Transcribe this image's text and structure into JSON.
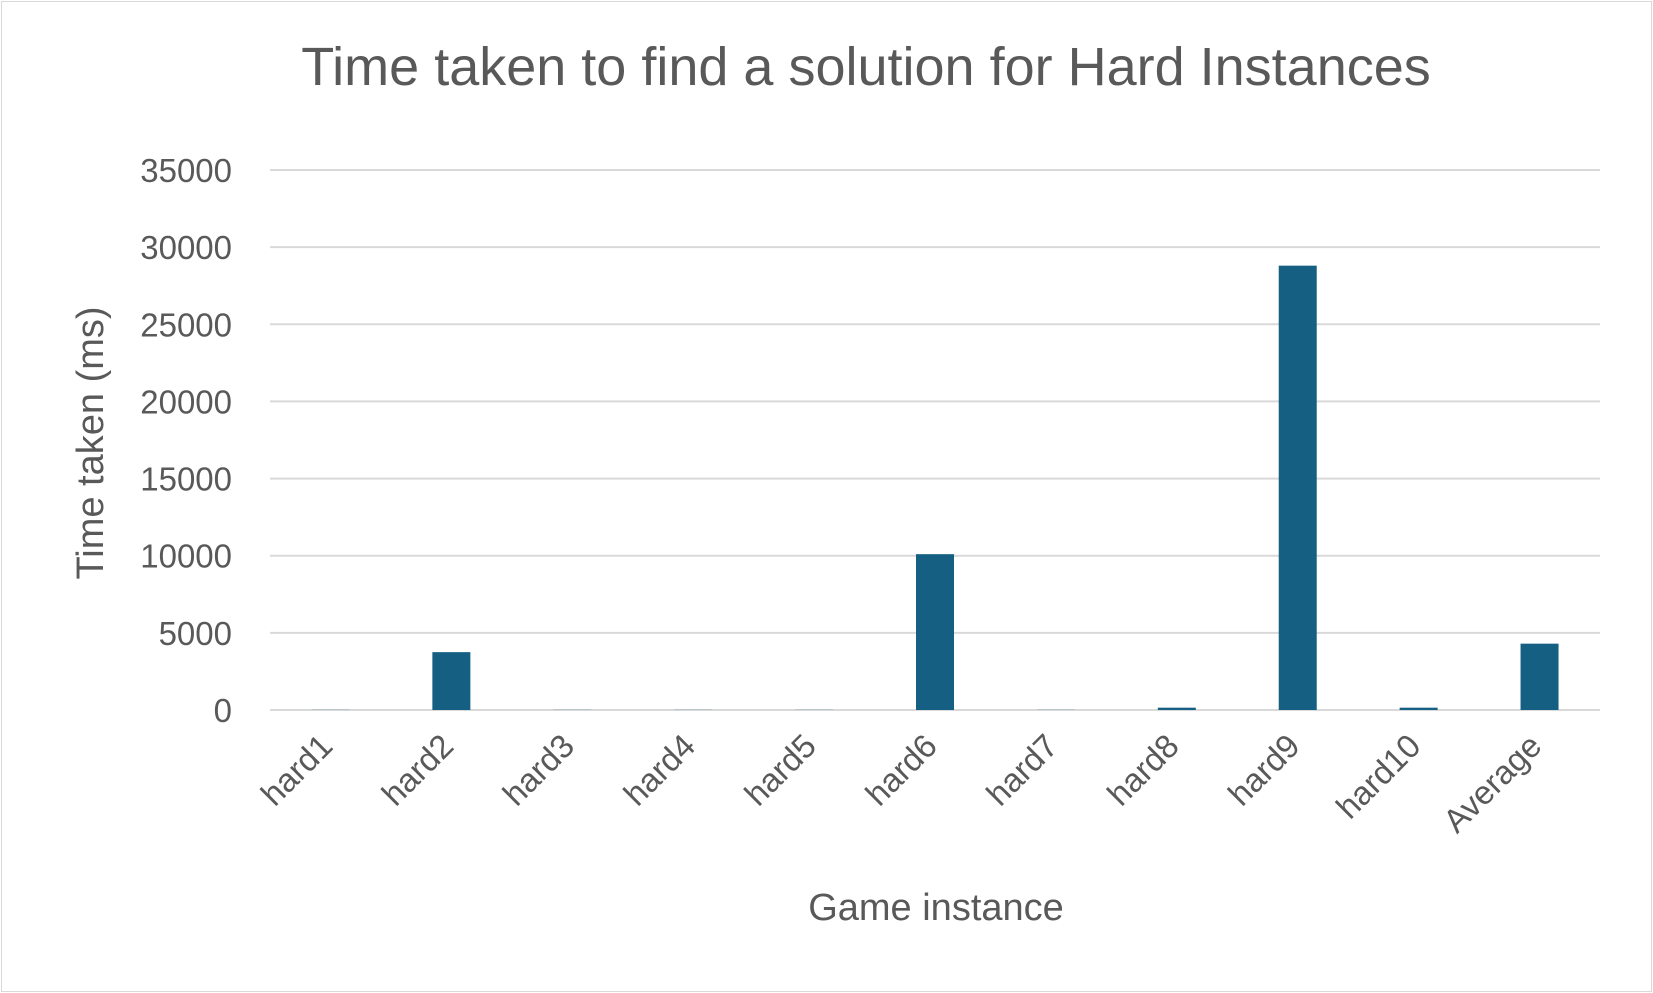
{
  "chart_data": {
    "type": "bar",
    "title": "Time taken to find a solution for Hard Instances",
    "xlabel": "Game instance",
    "ylabel": "Time taken (ms)",
    "categories": [
      "hard1",
      "hard2",
      "hard3",
      "hard4",
      "hard5",
      "hard6",
      "hard7",
      "hard8",
      "hard9",
      "hard10",
      "Average"
    ],
    "values": [
      10,
      3750,
      10,
      10,
      10,
      10100,
      10,
      150,
      28800,
      150,
      4300
    ],
    "ylim": [
      0,
      35000
    ],
    "yticks": [
      "0",
      "5000",
      "10000",
      "15000",
      "20000",
      "25000",
      "30000",
      "35000"
    ],
    "grid": true,
    "legend": "none",
    "colors": {
      "bar": "#156082",
      "grid": "#d9d9d9",
      "text": "#595959"
    }
  }
}
